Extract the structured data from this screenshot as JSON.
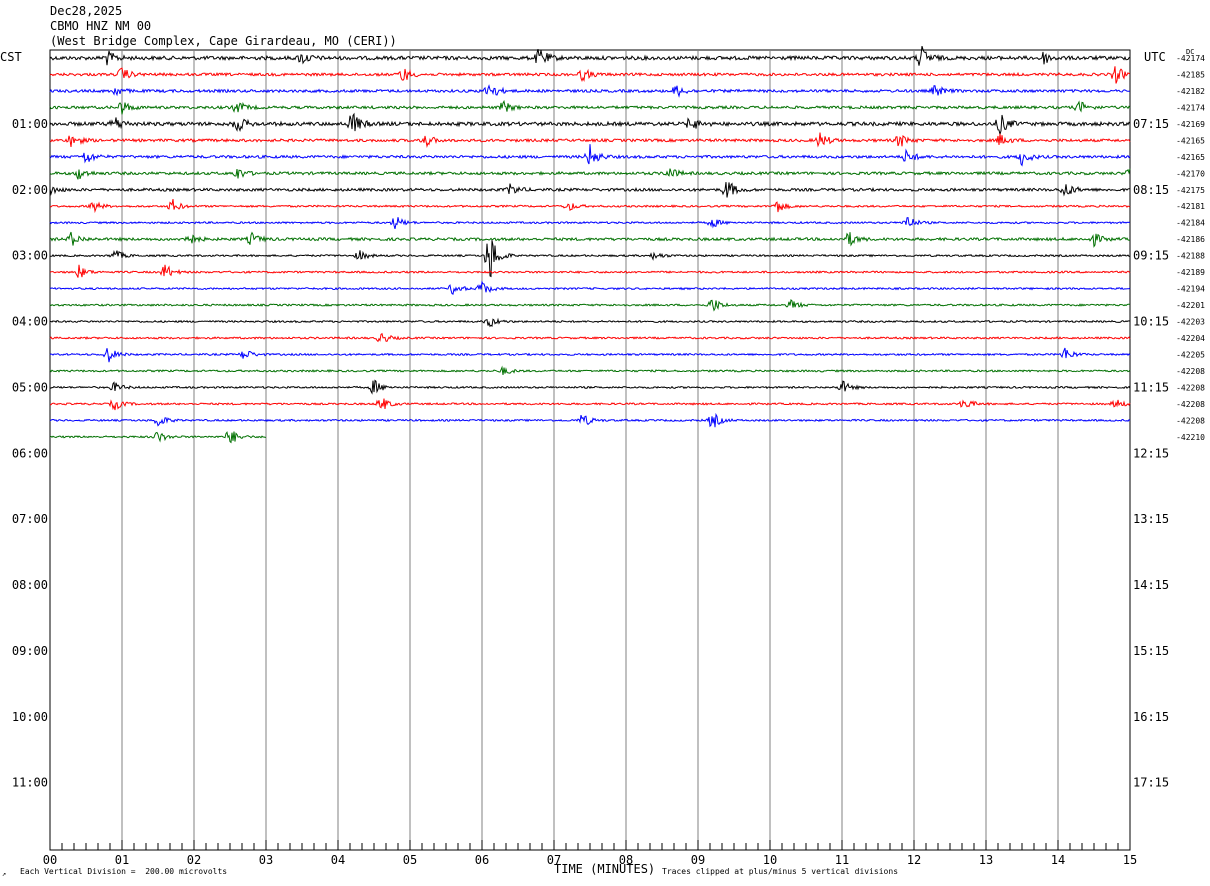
{
  "header": {
    "date": "Dec28,2025",
    "station": "CBMO HNZ NM 00",
    "location": "(West Bridge Complex, Cape Girardeau, MO (CERI))"
  },
  "tz_left": "CST",
  "tz_right": "UTC",
  "dc_label": "DC",
  "footer": {
    "division": "Each Vertical Division =  200.00 microvolts",
    "clip": "Traces clipped at plus/minus 5 vertical divisions",
    "mark": "↗"
  },
  "colors": {
    "black": "#000000",
    "red": "#ff0000",
    "blue": "#0000ff",
    "green": "#007000",
    "grid": "#808080"
  },
  "chart_data": {
    "type": "line",
    "title": "CBMO HNZ NM 00",
    "xlabel": "TIME (MINUTES)",
    "ylabel": "",
    "xlim": [
      0,
      15
    ],
    "x_ticks": [
      "00",
      "01",
      "02",
      "03",
      "04",
      "05",
      "06",
      "07",
      "08",
      "09",
      "10",
      "11",
      "12",
      "13",
      "14",
      "15"
    ],
    "left_hour_labels": [
      "01:00",
      "02:00",
      "03:00",
      "04:00",
      "05:00",
      "06:00",
      "07:00",
      "08:00",
      "09:00",
      "10:00",
      "11:00"
    ],
    "right_hour_labels": [
      "07:15",
      "08:15",
      "09:15",
      "10:15",
      "11:15",
      "12:15",
      "13:15",
      "14:15",
      "15:15",
      "16:15",
      "17:15"
    ],
    "trace_interval_minutes": 15,
    "trace_color_cycle": [
      "black",
      "red",
      "blue",
      "green"
    ],
    "traces": [
      {
        "dc": "-42174",
        "color": "black",
        "end_minute": 15,
        "amp": 4,
        "events": [
          [
            0.8,
            7
          ],
          [
            3.5,
            6
          ],
          [
            6.8,
            10
          ],
          [
            12.1,
            12
          ],
          [
            13.8,
            6
          ]
        ]
      },
      {
        "dc": "-42185",
        "color": "red",
        "end_minute": 15,
        "amp": 3,
        "events": [
          [
            1.0,
            7
          ],
          [
            4.9,
            8
          ],
          [
            7.4,
            6
          ],
          [
            14.8,
            9
          ]
        ]
      },
      {
        "dc": "-42182",
        "color": "blue",
        "end_minute": 15,
        "amp": 3,
        "events": [
          [
            0.9,
            5
          ],
          [
            6.1,
            10
          ],
          [
            8.7,
            6
          ],
          [
            12.3,
            6
          ]
        ]
      },
      {
        "dc": "-42174",
        "color": "green",
        "end_minute": 15,
        "amp": 3,
        "events": [
          [
            1.0,
            7
          ],
          [
            2.6,
            6
          ],
          [
            6.3,
            6
          ],
          [
            14.3,
            6
          ]
        ]
      },
      {
        "dc": "-42169",
        "color": "black",
        "end_minute": 15,
        "amp": 4,
        "events": [
          [
            0.9,
            7
          ],
          [
            2.6,
            8
          ],
          [
            4.2,
            12
          ],
          [
            8.9,
            7
          ],
          [
            13.2,
            10
          ]
        ]
      },
      {
        "dc": "-42165",
        "color": "red",
        "end_minute": 15,
        "amp": 3,
        "events": [
          [
            0.3,
            7
          ],
          [
            5.2,
            7
          ],
          [
            10.7,
            8
          ],
          [
            11.8,
            7
          ],
          [
            13.2,
            6
          ]
        ]
      },
      {
        "dc": "-42165",
        "color": "blue",
        "end_minute": 15,
        "amp": 3,
        "events": [
          [
            0.5,
            7
          ],
          [
            7.5,
            12
          ],
          [
            11.9,
            7
          ],
          [
            13.5,
            8
          ]
        ]
      },
      {
        "dc": "-42170",
        "color": "green",
        "end_minute": 15,
        "amp": 3,
        "events": [
          [
            0.4,
            6
          ],
          [
            2.6,
            6
          ],
          [
            8.6,
            6
          ],
          [
            15.0,
            6
          ]
        ]
      },
      {
        "dc": "-42175",
        "color": "black",
        "end_minute": 15,
        "amp": 3,
        "events": [
          [
            0.0,
            5
          ],
          [
            6.4,
            6
          ],
          [
            9.4,
            11
          ],
          [
            14.1,
            8
          ]
        ]
      },
      {
        "dc": "-42181",
        "color": "red",
        "end_minute": 15,
        "amp": 2,
        "events": [
          [
            0.6,
            6
          ],
          [
            1.7,
            7
          ],
          [
            7.2,
            5
          ],
          [
            10.1,
            7
          ]
        ]
      },
      {
        "dc": "-42184",
        "color": "blue",
        "end_minute": 15,
        "amp": 2,
        "events": [
          [
            4.8,
            7
          ],
          [
            9.2,
            5
          ],
          [
            11.9,
            8
          ]
        ]
      },
      {
        "dc": "-42186",
        "color": "green",
        "end_minute": 15,
        "amp": 3,
        "events": [
          [
            0.3,
            7
          ],
          [
            1.9,
            8
          ],
          [
            2.8,
            6
          ],
          [
            11.1,
            7
          ],
          [
            14.5,
            6
          ]
        ]
      },
      {
        "dc": "-42188",
        "color": "black",
        "end_minute": 15,
        "amp": 2,
        "events": [
          [
            0.9,
            6
          ],
          [
            4.3,
            5
          ],
          [
            6.1,
            30
          ],
          [
            8.4,
            4
          ]
        ]
      },
      {
        "dc": "-42189",
        "color": "red",
        "end_minute": 15,
        "amp": 2,
        "events": [
          [
            0.4,
            7
          ],
          [
            1.6,
            8
          ]
        ]
      },
      {
        "dc": "-42194",
        "color": "blue",
        "end_minute": 15,
        "amp": 2,
        "events": [
          [
            5.6,
            6
          ],
          [
            6.0,
            8
          ]
        ]
      },
      {
        "dc": "-42201",
        "color": "green",
        "end_minute": 15,
        "amp": 2,
        "events": [
          [
            9.2,
            8
          ],
          [
            10.3,
            5
          ]
        ]
      },
      {
        "dc": "-42203",
        "color": "black",
        "end_minute": 15,
        "amp": 2,
        "events": [
          [
            6.1,
            6
          ]
        ]
      },
      {
        "dc": "-42204",
        "color": "red",
        "end_minute": 15,
        "amp": 2,
        "events": [
          [
            4.6,
            6
          ]
        ]
      },
      {
        "dc": "-42205",
        "color": "blue",
        "end_minute": 15,
        "amp": 2,
        "events": [
          [
            0.8,
            9
          ],
          [
            2.7,
            6
          ],
          [
            14.1,
            7
          ]
        ]
      },
      {
        "dc": "-42208",
        "color": "green",
        "end_minute": 15,
        "amp": 2,
        "events": [
          [
            6.3,
            4
          ]
        ]
      },
      {
        "dc": "-42208",
        "color": "black",
        "end_minute": 15,
        "amp": 2,
        "events": [
          [
            0.9,
            5
          ],
          [
            4.5,
            8
          ],
          [
            11.0,
            7
          ]
        ]
      },
      {
        "dc": "-42208",
        "color": "red",
        "end_minute": 15,
        "amp": 2,
        "events": [
          [
            0.9,
            6
          ],
          [
            4.6,
            8
          ],
          [
            12.7,
            6
          ],
          [
            14.8,
            5
          ]
        ]
      },
      {
        "dc": "-42208",
        "color": "blue",
        "end_minute": 15,
        "amp": 2,
        "events": [
          [
            1.5,
            7
          ],
          [
            7.4,
            7
          ],
          [
            9.2,
            9
          ]
        ]
      },
      {
        "dc": "-42210",
        "color": "green",
        "end_minute": 3,
        "amp": 2,
        "events": [
          [
            1.5,
            6
          ],
          [
            2.5,
            9
          ]
        ]
      }
    ]
  }
}
